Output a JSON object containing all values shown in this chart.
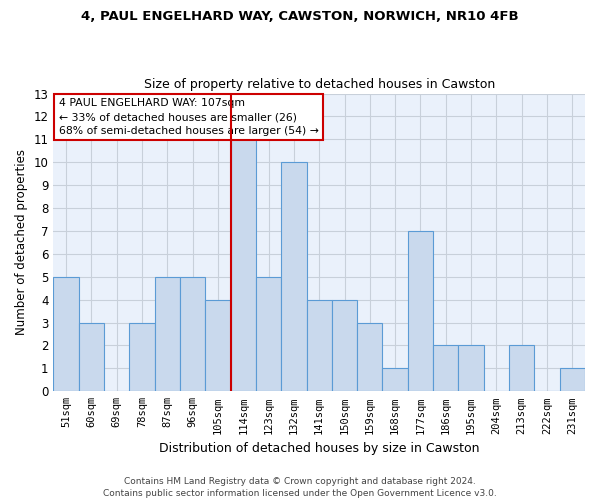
{
  "title1": "4, PAUL ENGELHARD WAY, CAWSTON, NORWICH, NR10 4FB",
  "title2": "Size of property relative to detached houses in Cawston",
  "xlabel": "Distribution of detached houses by size in Cawston",
  "ylabel": "Number of detached properties",
  "bar_labels": [
    "51sqm",
    "60sqm",
    "69sqm",
    "78sqm",
    "87sqm",
    "96sqm",
    "105sqm",
    "114sqm",
    "123sqm",
    "132sqm",
    "141sqm",
    "150sqm",
    "159sqm",
    "168sqm",
    "177sqm",
    "186sqm",
    "195sqm",
    "204sqm",
    "213sqm",
    "222sqm",
    "231sqm"
  ],
  "bar_values": [
    5,
    3,
    0,
    3,
    5,
    5,
    4,
    11,
    5,
    10,
    4,
    4,
    3,
    1,
    7,
    2,
    2,
    0,
    2,
    0,
    1
  ],
  "bar_color": "#c9d9ed",
  "bar_edge_color": "#5b9bd5",
  "vline_x": 6.5,
  "vline_color": "#cc0000",
  "annotation_line1": "4 PAUL ENGELHARD WAY: 107sqm",
  "annotation_line2": "← 33% of detached houses are smaller (26)",
  "annotation_line3": "68% of semi-detached houses are larger (54) →",
  "annotation_box_color": "#ffffff",
  "annotation_box_edge": "#cc0000",
  "ylim": [
    0,
    13
  ],
  "yticks": [
    0,
    1,
    2,
    3,
    4,
    5,
    6,
    7,
    8,
    9,
    10,
    11,
    12,
    13
  ],
  "footer": "Contains HM Land Registry data © Crown copyright and database right 2024.\nContains public sector information licensed under the Open Government Licence v3.0.",
  "grid_color": "#c8d0da",
  "bg_color": "#eaf1fb"
}
